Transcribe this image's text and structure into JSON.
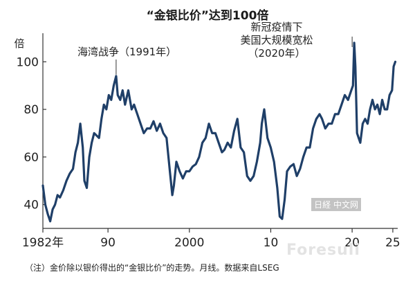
{
  "title": "“金银比价”达到100倍",
  "footnote": "（注）金价除以银价得出的“金银比价”的走势。月线。数据来自LSEG",
  "watermark": "中文网",
  "watermark_logo": "日経",
  "watermark_site": "Foresuli",
  "colors": {
    "line": "#1f3f68",
    "axis": "#333333",
    "text": "#222222"
  },
  "chart_data": {
    "type": "line",
    "title": "“金银比价”达到100倍",
    "ylabel": "倍",
    "xlabel": "",
    "xlim": [
      1982,
      2025.6
    ],
    "ylim": [
      30,
      112
    ],
    "yticks": [
      40,
      60,
      80,
      100
    ],
    "xticks": [
      {
        "value": 1982,
        "label": "1982年"
      },
      {
        "value": 1990,
        "label": "90"
      },
      {
        "value": 2000,
        "label": "2000"
      },
      {
        "value": 2010,
        "label": "10"
      },
      {
        "value": 2020,
        "label": "20"
      },
      {
        "value": 2025,
        "label": "25"
      }
    ],
    "grid": false,
    "annotations": [
      {
        "lines": [
          "海湾战争（1991年）"
        ],
        "x": 1991,
        "y": 94
      },
      {
        "lines": [
          "新冠疫情下",
          "美国大规模宽松",
          "（2020年）"
        ],
        "x": 2020,
        "y": 110
      }
    ],
    "series": [
      {
        "x": [
          1982.0,
          1982.3,
          1982.6,
          1982.9,
          1983.2,
          1983.5,
          1983.8,
          1984.1,
          1984.5,
          1984.9,
          1985.3,
          1985.7,
          1986.0,
          1986.3,
          1986.6,
          1986.9,
          1987.1,
          1987.4,
          1987.7,
          1988.0,
          1988.3,
          1988.6,
          1988.9,
          1989.2,
          1989.5,
          1989.8,
          1990.1,
          1990.4,
          1990.7,
          1991.0,
          1991.2,
          1991.5,
          1991.8,
          1992.1,
          1992.5,
          1992.9,
          1993.2,
          1993.6,
          1994.0,
          1994.4,
          1994.8,
          1995.2,
          1995.6,
          1996.0,
          1996.4,
          1996.8,
          1997.2,
          1997.6,
          1997.9,
          1998.1,
          1998.4,
          1998.8,
          1999.2,
          1999.6,
          2000.0,
          2000.4,
          2000.8,
          2001.2,
          2001.6,
          2002.0,
          2002.4,
          2002.8,
          2003.2,
          2003.6,
          2004.0,
          2004.3,
          2004.7,
          2005.1,
          2005.5,
          2005.9,
          2006.3,
          2006.7,
          2007.1,
          2007.5,
          2007.9,
          2008.3,
          2008.7,
          2008.9,
          2009.2,
          2009.6,
          2010.0,
          2010.4,
          2010.8,
          2011.1,
          2011.4,
          2011.7,
          2012.0,
          2012.4,
          2012.8,
          2013.2,
          2013.6,
          2014.0,
          2014.4,
          2014.8,
          2015.2,
          2015.6,
          2016.0,
          2016.3,
          2016.7,
          2017.1,
          2017.5,
          2017.9,
          2018.3,
          2018.7,
          2019.1,
          2019.5,
          2019.9,
          2020.1,
          2020.25,
          2020.4,
          2020.6,
          2020.8,
          2021.0,
          2021.3,
          2021.6,
          2021.9,
          2022.2,
          2022.5,
          2022.8,
          2023.1,
          2023.4,
          2023.7,
          2024.0,
          2024.3,
          2024.6,
          2024.9,
          2025.1,
          2025.3
        ],
        "y": [
          48,
          40,
          36,
          33,
          38,
          40,
          44,
          43,
          46,
          50,
          53,
          55,
          62,
          66,
          74,
          64,
          50,
          47,
          60,
          66,
          70,
          69,
          68,
          76,
          82,
          80,
          86,
          84,
          90,
          94,
          86,
          84,
          88,
          82,
          88,
          80,
          82,
          78,
          74,
          70,
          72,
          72,
          75,
          71,
          74,
          70,
          68,
          54,
          44,
          48,
          58,
          54,
          51,
          54,
          54,
          56,
          57,
          60,
          66,
          68,
          74,
          70,
          70,
          66,
          62,
          63,
          66,
          64,
          71,
          76,
          64,
          62,
          52,
          50,
          52,
          58,
          66,
          74,
          80,
          68,
          64,
          58,
          47,
          35,
          34,
          42,
          54,
          56,
          57,
          52,
          55,
          60,
          64,
          64,
          72,
          76,
          78,
          76,
          72,
          74,
          74,
          78,
          78,
          82,
          86,
          84,
          88,
          90,
          108,
          98,
          70,
          68,
          66,
          74,
          76,
          74,
          80,
          84,
          80,
          82,
          78,
          84,
          80,
          80,
          86,
          88,
          98,
          100
        ]
      }
    ]
  }
}
